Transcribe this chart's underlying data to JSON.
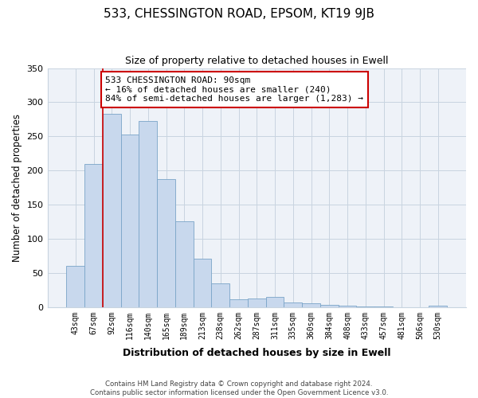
{
  "title": "533, CHESSINGTON ROAD, EPSOM, KT19 9JB",
  "subtitle": "Size of property relative to detached houses in Ewell",
  "xlabel": "Distribution of detached houses by size in Ewell",
  "ylabel": "Number of detached properties",
  "bar_labels": [
    "43sqm",
    "67sqm",
    "92sqm",
    "116sqm",
    "140sqm",
    "165sqm",
    "189sqm",
    "213sqm",
    "238sqm",
    "262sqm",
    "287sqm",
    "311sqm",
    "335sqm",
    "360sqm",
    "384sqm",
    "408sqm",
    "433sqm",
    "457sqm",
    "481sqm",
    "506sqm",
    "530sqm"
  ],
  "bar_values": [
    60,
    210,
    283,
    253,
    272,
    188,
    126,
    71,
    35,
    11,
    13,
    15,
    7,
    5,
    3,
    2,
    1,
    1,
    0,
    0,
    2
  ],
  "bar_color": "#c8d8ed",
  "bar_edge_color": "#7aa4c8",
  "grid_color": "#c8d4e0",
  "plot_bg_color": "#eef2f8",
  "ylim": [
    0,
    350
  ],
  "yticks": [
    0,
    50,
    100,
    150,
    200,
    250,
    300,
    350
  ],
  "property_line_index": 2,
  "property_line_color": "#cc0000",
  "annotation_text": "533 CHESSINGTON ROAD: 90sqm\n← 16% of detached houses are smaller (240)\n84% of semi-detached houses are larger (1,283) →",
  "annotation_box_color": "#ffffff",
  "annotation_box_edge": "#cc0000",
  "footer_line1": "Contains HM Land Registry data © Crown copyright and database right 2024.",
  "footer_line2": "Contains public sector information licensed under the Open Government Licence v3.0."
}
